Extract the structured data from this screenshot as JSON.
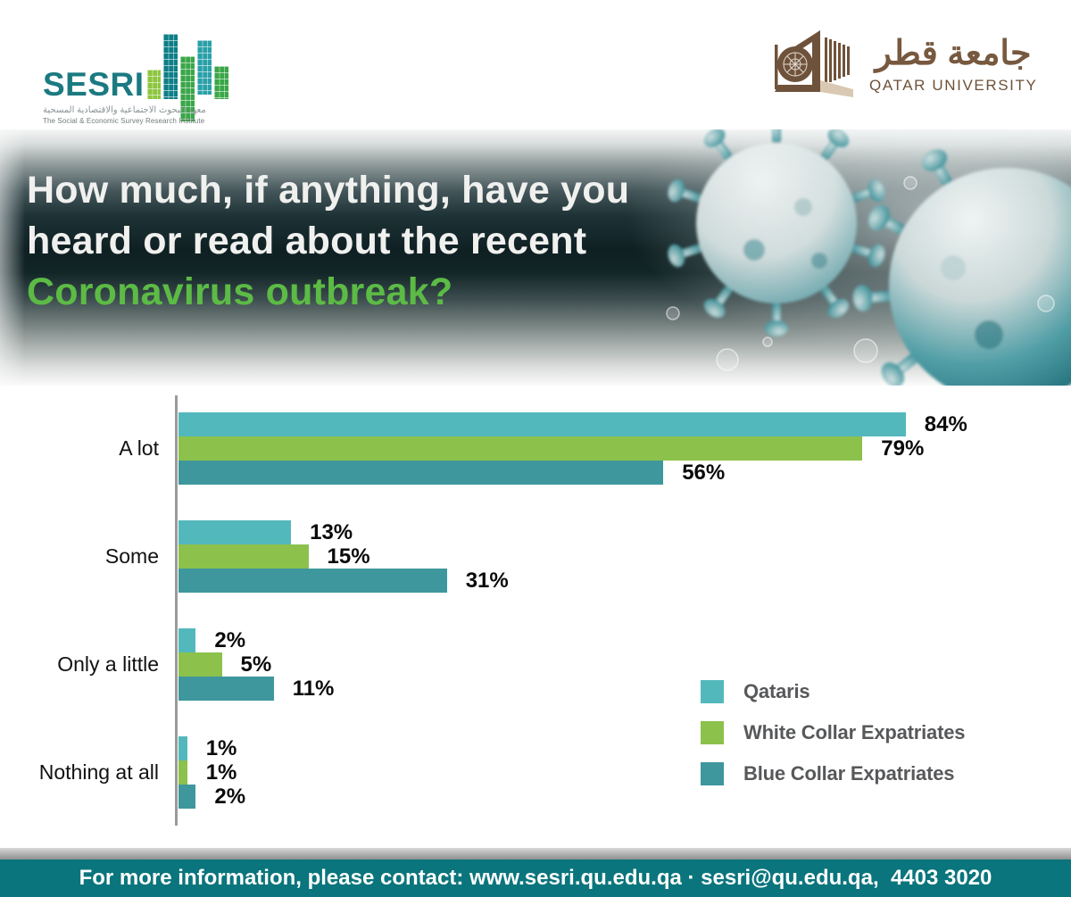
{
  "header": {
    "sesri": {
      "wordmark": "SESRI",
      "arabic": "معهد البحوث الاجتماعية والاقتصادية المسحية",
      "tagline": "The Social & Economic Survey Research Institute",
      "wordmark_color": "#1b7a81",
      "column_icon": "people-building-columns"
    },
    "qatar_university": {
      "arabic": "جامعة قطر",
      "name": "QATAR UNIVERSITY",
      "brand_color": "#77593f",
      "emblem_icon": "qu-building-emblem"
    }
  },
  "banner": {
    "question_line1": "How much, if anything, have you",
    "question_line2": "heard or read about the recent",
    "question_highlight": "Coronavirus outbreak?",
    "highlight_color": "#5cbb45",
    "art_icon": "coronavirus-illustration"
  },
  "chart_data": {
    "type": "bar",
    "orientation": "horizontal",
    "categories": [
      "A lot",
      "Some",
      "Only a little",
      "Nothing at all"
    ],
    "series": [
      {
        "name": "Qataris",
        "color": "#53b8bc",
        "values": [
          84,
          13,
          2,
          1
        ]
      },
      {
        "name": "White Collar Expatriates",
        "color": "#8cc14c",
        "values": [
          79,
          15,
          5,
          1
        ]
      },
      {
        "name": "Blue Collar Expatriates",
        "color": "#3e979d",
        "values": [
          56,
          31,
          11,
          2
        ]
      }
    ],
    "value_suffix": "%",
    "xlim": [
      0,
      100
    ],
    "grid": false,
    "legend_position": "bottom-right",
    "value_labels": "outside-end"
  },
  "footer": {
    "text": "For more information, please contact: www.sesri.qu.edu.qa · sesri@qu.edu.qa,  4403 3020",
    "band_color": "#0a757c"
  }
}
